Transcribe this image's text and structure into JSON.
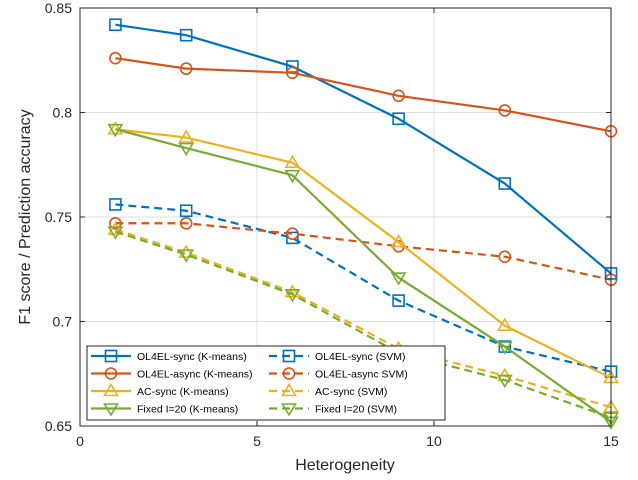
{
  "chart_data": {
    "type": "line",
    "title": "",
    "xlabel": "Heterogeneity",
    "ylabel": "F1 score / Prediction accuracy",
    "xlim": [
      0,
      15
    ],
    "ylim": [
      0.65,
      0.85
    ],
    "xticks": [
      0,
      5,
      10,
      15
    ],
    "yticks": [
      0.65,
      0.7,
      0.75,
      0.8,
      0.85
    ],
    "xtick_labels": [
      "0",
      "5",
      "10",
      "15"
    ],
    "ytick_labels": [
      "0.65",
      "0.7",
      "0.75",
      "0.8",
      "0.85"
    ],
    "grid": true,
    "legend_position": "bottom",
    "legend_columns": 2,
    "series": [
      {
        "name": "OL4EL-sync (K-means)",
        "color": "#0072BD",
        "line": "solid",
        "marker": "square",
        "x": [
          1,
          3,
          6,
          9,
          12,
          15
        ],
        "y": [
          0.842,
          0.837,
          0.822,
          0.797,
          0.766,
          0.723
        ]
      },
      {
        "name": "OL4EL-async (K-means)",
        "color": "#D95319",
        "line": "solid",
        "marker": "circle",
        "x": [
          1,
          3,
          6,
          9,
          12,
          15
        ],
        "y": [
          0.826,
          0.821,
          0.819,
          0.808,
          0.801,
          0.791
        ]
      },
      {
        "name": "AC-sync (K-means)",
        "color": "#EDB120",
        "line": "solid",
        "marker": "triangle-up",
        "x": [
          1,
          3,
          6,
          9,
          12,
          15
        ],
        "y": [
          0.792,
          0.788,
          0.776,
          0.738,
          0.698,
          0.673
        ]
      },
      {
        "name": "Fixed I=20 (K-means)",
        "color": "#77AC30",
        "line": "solid",
        "marker": "triangle-down",
        "x": [
          1,
          3,
          6,
          9,
          12,
          15
        ],
        "y": [
          0.792,
          0.783,
          0.77,
          0.721,
          0.688,
          0.652
        ]
      },
      {
        "name": "OL4EL-sync (SVM)",
        "color": "#0072BD",
        "line": "dashed",
        "marker": "square",
        "x": [
          1,
          3,
          6,
          9,
          12,
          15
        ],
        "y": [
          0.756,
          0.753,
          0.74,
          0.71,
          0.688,
          0.676
        ]
      },
      {
        "name": "OL4EL-async SVM)",
        "color": "#D95319",
        "line": "dashed",
        "marker": "circle",
        "x": [
          1,
          3,
          6,
          9,
          12,
          15
        ],
        "y": [
          0.747,
          0.747,
          0.742,
          0.736,
          0.731,
          0.72
        ]
      },
      {
        "name": "AC-sync (SVM)",
        "color": "#EDB120",
        "line": "dashed",
        "marker": "triangle-up",
        "x": [
          1,
          3,
          6,
          9,
          12,
          15
        ],
        "y": [
          0.744,
          0.733,
          0.714,
          0.687,
          0.674,
          0.659
        ]
      },
      {
        "name": "Fixed I=20 (SVM)",
        "color": "#77AC30",
        "line": "dashed",
        "marker": "triangle-down",
        "x": [
          1,
          3,
          6,
          9,
          12,
          15
        ],
        "y": [
          0.743,
          0.732,
          0.713,
          0.685,
          0.672,
          0.654
        ]
      }
    ]
  }
}
